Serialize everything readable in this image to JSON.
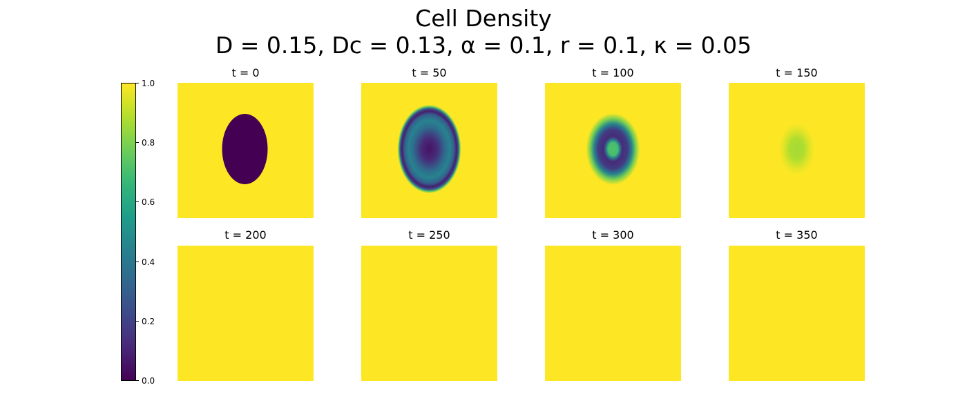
{
  "figure": {
    "title_line1": "Cell Density",
    "title_line2": "D = 0.15, Dc = 0.13, α = 0.1, r = 0.1, κ = 0.05"
  },
  "chart_data": {
    "type": "heatmap",
    "colormap": "viridis",
    "colorbar": {
      "ticks": [
        "0.0",
        "0.2",
        "0.4",
        "0.6",
        "0.8",
        "1.0"
      ],
      "range": [
        0.0,
        1.0
      ]
    },
    "panels": [
      {
        "label": "t = 0",
        "t": 0,
        "pattern": "solid-ellipse",
        "background_value": 1.0,
        "min_value": 0.0
      },
      {
        "label": "t = 50",
        "t": 50,
        "pattern": "ring",
        "background_value": 1.0,
        "min_value": 0.05
      },
      {
        "label": "t = 100",
        "t": 100,
        "pattern": "ring-small",
        "background_value": 1.0,
        "min_value": 0.25
      },
      {
        "label": "t = 150",
        "t": 150,
        "pattern": "faint-blob",
        "background_value": 1.0,
        "min_value": 0.85
      },
      {
        "label": "t = 200",
        "t": 200,
        "pattern": "uniform",
        "background_value": 1.0,
        "min_value": 1.0
      },
      {
        "label": "t = 250",
        "t": 250,
        "pattern": "uniform",
        "background_value": 1.0,
        "min_value": 1.0
      },
      {
        "label": "t = 300",
        "t": 300,
        "pattern": "uniform",
        "background_value": 1.0,
        "min_value": 1.0
      },
      {
        "label": "t = 350",
        "t": 350,
        "pattern": "uniform",
        "background_value": 1.0,
        "min_value": 1.0
      }
    ]
  }
}
